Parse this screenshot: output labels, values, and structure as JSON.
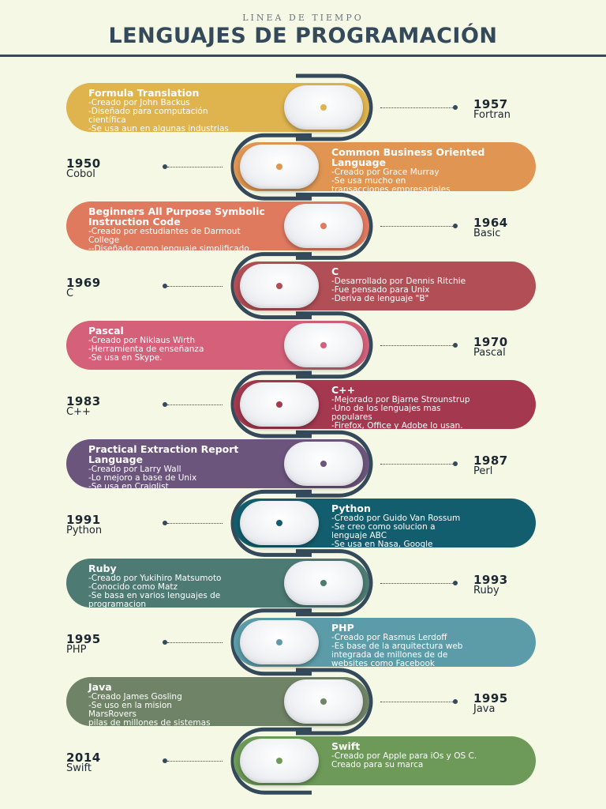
{
  "header": {
    "subtitle": "LINEA DE TIEMPO",
    "title": "LENGUAJES DE PROGRAMACIÓN"
  },
  "colors": {
    "background": "#f4f8e4",
    "title": "#34495a",
    "rail": "#34495a",
    "card_text": "#ffffff"
  },
  "timeline": [
    {
      "side": "left",
      "color": "#dfb34e",
      "heading": "Formula Translation",
      "lines": [
        "-Creado por John Backus",
        "-Diseñado para computación",
        "científica",
        "-Se usa aun en algunas industrias"
      ],
      "year": "1957",
      "name": "Fortran"
    },
    {
      "side": "right",
      "color": "#e09652",
      "heading": "Common Business Oriented Language",
      "lines": [
        "-Creado por Grace Murray",
        "-Se usa mucho en",
        "transacciones empresariales"
      ],
      "year": "1950",
      "name": "Cobol"
    },
    {
      "side": "left",
      "color": "#e07a5f",
      "heading": "Beginners All Purpose Symbolic Instruction Code",
      "lines": [
        "-Creado por estudiantes de Darmout",
        "College",
        "--Diseñado como lenguaje simplificado"
      ],
      "year": "1964",
      "name": "Basic"
    },
    {
      "side": "right",
      "color": "#b24f56",
      "heading": "C",
      "lines": [
        "-Desarrollado por Dennis Ritchie",
        "-Fue pensado para Unix",
        "-Deriva de lenguaje \"B\""
      ],
      "year": "1969",
      "name": "C"
    },
    {
      "side": "left",
      "color": "#d4607a",
      "heading": "Pascal",
      "lines": [
        "-Creado por Niklaus Wirth",
        "-Herramienta de enseñanza",
        "-Se usa en Skype."
      ],
      "year": "1970",
      "name": "Pascal"
    },
    {
      "side": "right",
      "color": "#a3384f",
      "heading": "C++",
      "lines": [
        "-Mejorado por Bjarne Strounstrup",
        "-Uno de los lenguajes mas",
        "populares",
        "-Firefox, Office y Adobe lo usan."
      ],
      "year": "1983",
      "name": "C++"
    },
    {
      "side": "left",
      "color": "#6c557d",
      "heading": "Practical Extraction Report Language",
      "lines": [
        "-Creado por Larry Wall",
        "-Lo mejoro a base de Unix",
        "-Se usa en Craiglist"
      ],
      "year": "1987",
      "name": "Perl"
    },
    {
      "side": "right",
      "color": "#135e6e",
      "heading": "Python",
      "lines": [
        "-Creado por Guido Van Rossum",
        "-Se creo como solucion a",
        "lenguaje ABC",
        "-Se usa en Nasa, Google"
      ],
      "year": "1991",
      "name": "Python"
    },
    {
      "side": "left",
      "color": "#4d7a72",
      "heading": "Ruby",
      "lines": [
        "-Creado por Yukihiro Matsumoto",
        "-Conocido como Matz",
        "-Se basa en varios lenguajes de",
        "programacion"
      ],
      "year": "1993",
      "name": "Ruby"
    },
    {
      "side": "right",
      "color": "#5c9ca8",
      "heading": "PHP",
      "lines": [
        "-Creado por Rasmus Lerdoff",
        "-Es base de la arquitectura web",
        "integrada de millones de de",
        "websites como Facebook"
      ],
      "year": "1995",
      "name": "PHP"
    },
    {
      "side": "left",
      "color": "#6f8366",
      "heading": "Java",
      "lines": [
        "-Creado James Gosling",
        "-Se uso en la mision",
        "MarsRovers",
        "pilas de millones de sistemas"
      ],
      "year": "1995",
      "name": "Java"
    },
    {
      "side": "right",
      "color": "#6d9a58",
      "heading": "Swift",
      "lines": [
        "-Creado por Apple para iOs y OS C.",
        "Creado para su marca"
      ],
      "year": "2014",
      "name": "Swift"
    }
  ]
}
